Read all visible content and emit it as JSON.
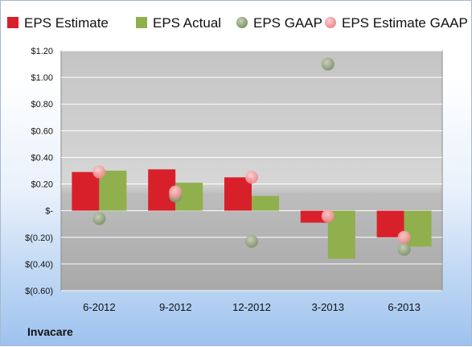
{
  "company": "Invacare",
  "colors": {
    "eps_estimate": "#d8202b",
    "eps_actual": "#8fb04d",
    "eps_gaap": "#7f9168",
    "eps_estimate_gaap": "#f0868b"
  },
  "chart_data": {
    "type": "bar",
    "categories": [
      "6-2012",
      "9-2012",
      "12-2012",
      "3-2013",
      "6-2013"
    ],
    "ylim": [
      -0.6,
      1.2
    ],
    "yticks": [
      1.2,
      1.0,
      0.8,
      0.6,
      0.4,
      0.2,
      0,
      -0.2,
      -0.4,
      -0.6
    ],
    "ytick_labels": [
      "$1.20",
      "$1.00",
      "$0.80",
      "$0.60",
      "$0.40",
      "$0.20",
      "$-",
      "$(0.20)",
      "$(0.40)",
      "$(0.60)"
    ],
    "legend_position": "top",
    "series": [
      {
        "name": "EPS Estimate",
        "kind": "bar",
        "color": "#d8202b",
        "values": [
          0.29,
          0.31,
          0.25,
          -0.09,
          -0.2
        ]
      },
      {
        "name": "EPS Actual",
        "kind": "bar",
        "color": "#8fb04d",
        "values": [
          0.3,
          0.21,
          0.11,
          -0.36,
          -0.27
        ]
      },
      {
        "name": "EPS GAAP",
        "kind": "marker",
        "color": "#7f9168",
        "values": [
          -0.06,
          0.11,
          -0.23,
          1.1,
          -0.29
        ]
      },
      {
        "name": "EPS Estimate GAAP",
        "kind": "marker",
        "color": "#f0868b",
        "values": [
          0.29,
          0.14,
          0.25,
          -0.04,
          -0.2
        ]
      }
    ]
  }
}
